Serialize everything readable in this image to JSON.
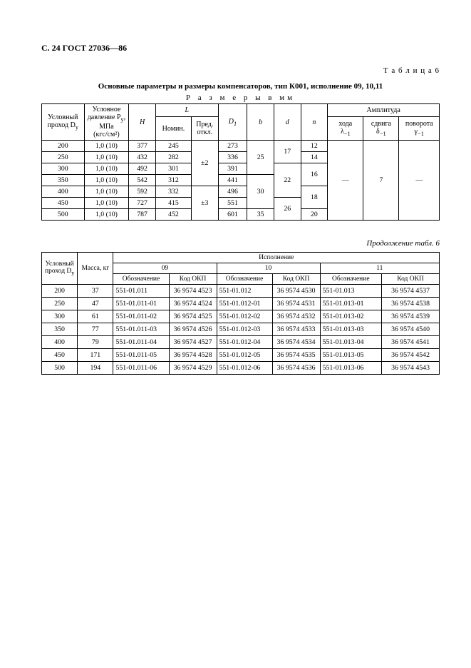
{
  "page_header": "С. 24 ГОСТ 27036—86",
  "table_label": "Т а б л и ц а 6",
  "title": "Основные параметры и размеры компенсаторов, тип К001, исполнение 09, 10,11",
  "subtitle": "Р а з м е р ы   в   мм",
  "cont_label": "Продолжение табл. 6",
  "t1": {
    "headers": {
      "dy": "Условный проход D",
      "dy_sub": "у",
      "press": "Условное давление P",
      "press_sub": "у",
      "press_unit1": ", МПа",
      "press_unit2": "(кгс/см²)",
      "H": "H",
      "L": "L",
      "Lnom": "Номин.",
      "Ldev": "Пред. откл.",
      "D1": "D",
      "D1_sub": "1",
      "b": "b",
      "d": "d",
      "n": "n",
      "amp": "Амплитуда",
      "amp1": "хода",
      "amp1s": "λ",
      "amp1ss": "−1",
      "amp2": "сдвига",
      "amp2s": "δ",
      "amp2ss": "−1",
      "amp3": "поворота",
      "amp3s": "γ",
      "amp3ss": "−1"
    },
    "rows": [
      {
        "dy": "200",
        "p": "1,0 (10)",
        "H": "377",
        "Lnom": "245",
        "Ldev": "±2",
        "D1": "273",
        "b": "25",
        "d": "17",
        "n": "12"
      },
      {
        "dy": "250",
        "p": "1,0 (10)",
        "H": "432",
        "Lnom": "282",
        "Ldev": "",
        "D1": "336",
        "b": "",
        "d": "",
        "n": "14"
      },
      {
        "dy": "300",
        "p": "1,0 (10)",
        "H": "492",
        "Lnom": "301",
        "Ldev": "",
        "D1": "391",
        "b": "",
        "d": "22",
        "n": "16"
      },
      {
        "dy": "350",
        "p": "1,0 (10)",
        "H": "542",
        "Lnom": "312",
        "Ldev": "",
        "D1": "441",
        "b": "30",
        "d": "",
        "n": ""
      },
      {
        "dy": "400",
        "p": "1,0 (10)",
        "H": "592",
        "Lnom": "332",
        "Ldev": "±3",
        "D1": "496",
        "b": "",
        "d": "",
        "n": "18"
      },
      {
        "dy": "450",
        "p": "1,0 (10)",
        "H": "727",
        "Lnom": "415",
        "Ldev": "",
        "D1": "551",
        "b": "",
        "d": "26",
        "n": ""
      },
      {
        "dy": "500",
        "p": "1,0 (10)",
        "H": "787",
        "Lnom": "452",
        "Ldev": "",
        "D1": "601",
        "b": "35",
        "d": "",
        "n": "20"
      }
    ],
    "amp_vals": {
      "a1": "—",
      "a2": "7",
      "a3": "—"
    }
  },
  "t2": {
    "headers": {
      "dy": "Условный проход D",
      "dy_sub": "у",
      "mass": "Масса, кг",
      "isp": "Исполнение",
      "c09": "09",
      "c10": "10",
      "c11": "11",
      "oboz": "Обозначение",
      "okp": "Код ОКП"
    },
    "rows": [
      {
        "dy": "200",
        "m": "37",
        "o1": "551-01.011",
        "k1": "36 9574 4523",
        "o2": "551-01.012",
        "k2": "36 9574 4530",
        "o3": "551-01.013",
        "k3": "36 9574 4537"
      },
      {
        "dy": "250",
        "m": "47",
        "o1": "551-01.011-01",
        "k1": "36 9574 4524",
        "o2": "551-01.012-01",
        "k2": "36 9574 4531",
        "o3": "551-01.013-01",
        "k3": "36 9574 4538"
      },
      {
        "dy": "300",
        "m": "61",
        "o1": "551-01.011-02",
        "k1": "36 9574 4525",
        "o2": "551-01.012-02",
        "k2": "36 9574 4532",
        "o3": "551-01.013-02",
        "k3": "36 9574 4539"
      },
      {
        "dy": "350",
        "m": "77",
        "o1": "551-01.011-03",
        "k1": "36 9574 4526",
        "o2": "551-01.012-03",
        "k2": "36 9574 4533",
        "o3": "551-01.013-03",
        "k3": "36 9574 4540"
      },
      {
        "dy": "400",
        "m": "79",
        "o1": "551-01.011-04",
        "k1": "36 9574 4527",
        "o2": "551-01.012-04",
        "k2": "36 9574 4534",
        "o3": "551-01.013-04",
        "k3": "36 9574 4541"
      },
      {
        "dy": "450",
        "m": "171",
        "o1": "551-01.011-05",
        "k1": "36 9574 4528",
        "o2": "551-01.012-05",
        "k2": "36 9574 4535",
        "o3": "551-01.013-05",
        "k3": "36 9574 4542"
      },
      {
        "dy": "500",
        "m": "194",
        "o1": "551-01.011-06",
        "k1": "36 9574 4529",
        "o2": "551-01.012-06",
        "k2": "36 9574 4536",
        "o3": "551-01.013-06",
        "k3": "36 9574 4543"
      }
    ]
  }
}
